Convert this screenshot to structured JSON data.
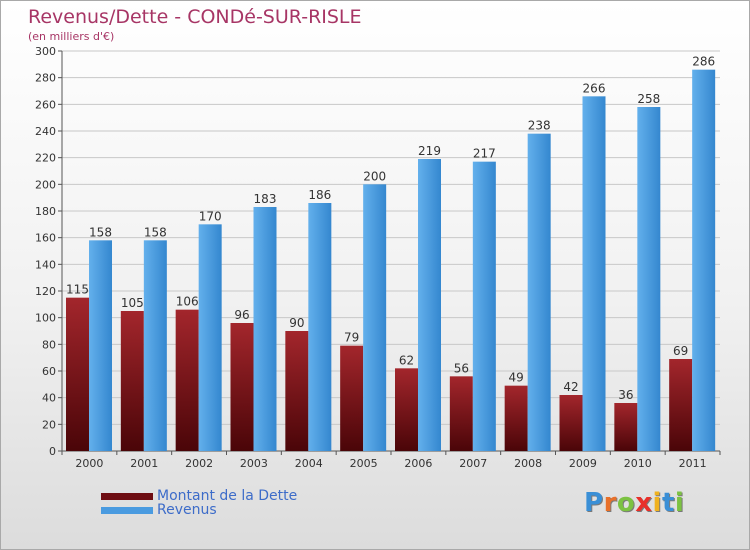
{
  "chart_data": {
    "type": "bar",
    "title": "Revenus/Dette - CONDé-SUR-RISLE",
    "subtitle": "(en milliers d'€)",
    "categories": [
      "2000",
      "2001",
      "2002",
      "2003",
      "2004",
      "2005",
      "2006",
      "2007",
      "2008",
      "2009",
      "2010",
      "2011"
    ],
    "series": [
      {
        "name": "Montant de la Dette",
        "color": "#7b1218",
        "values": [
          115,
          105,
          106,
          96,
          90,
          79,
          62,
          56,
          49,
          42,
          36,
          69
        ]
      },
      {
        "name": "Revenus",
        "color": "#4f9fe0",
        "values": [
          158,
          158,
          170,
          183,
          186,
          200,
          219,
          217,
          238,
          266,
          258,
          286
        ]
      }
    ],
    "ylim": [
      0,
      300
    ],
    "yticks": [
      0,
      20,
      40,
      60,
      80,
      100,
      120,
      140,
      160,
      180,
      200,
      220,
      240,
      260,
      280,
      300
    ],
    "grid": true,
    "legend_position": "bottom-left"
  },
  "legend": [
    {
      "label": "Montant de la Dette",
      "color": "#6e0d12"
    },
    {
      "label": "Revenus",
      "color": "#4a9be0"
    }
  ],
  "logo_letters": [
    {
      "ch": "P",
      "color": "#3a8fd6"
    },
    {
      "ch": "r",
      "color": "#e8702a"
    },
    {
      "ch": "o",
      "color": "#7cc242"
    },
    {
      "ch": "x",
      "color": "#e8302a"
    },
    {
      "ch": "i",
      "color": "#f0b21f"
    },
    {
      "ch": "t",
      "color": "#3a8fd6"
    },
    {
      "ch": "i",
      "color": "#7cc242"
    }
  ]
}
